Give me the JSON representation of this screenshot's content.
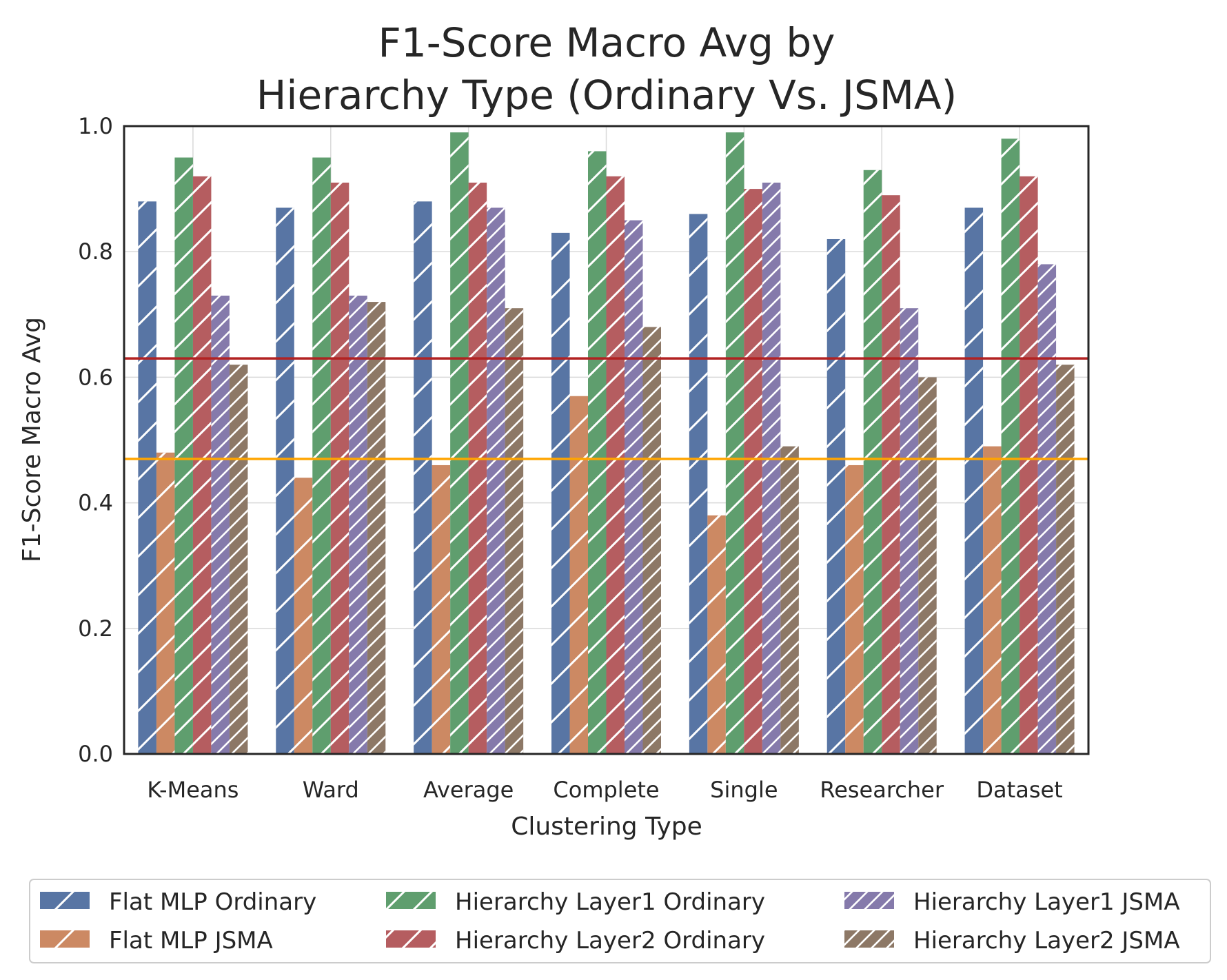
{
  "chart_data": {
    "type": "bar",
    "title_lines": [
      "F1-Score Macro Avg by",
      "Hierarchy Type (Ordinary Vs. JSMA)"
    ],
    "xlabel": "Clustering Type",
    "ylabel": "F1-Score Macro Avg",
    "ylim": [
      0,
      1.0
    ],
    "yticks": [
      "0.0",
      "0.2",
      "0.4",
      "0.6",
      "0.8",
      "1.0"
    ],
    "grid": true,
    "legend_position": "bottom",
    "categories": [
      "K-Means",
      "Ward",
      "Average",
      "Complete",
      "Single",
      "Researcher",
      "Dataset"
    ],
    "series": [
      {
        "name": "Flat MLP Ordinary",
        "color": "#5875a4",
        "hatch": "sparse",
        "values": [
          0.88,
          0.87,
          0.88,
          0.83,
          0.86,
          0.82,
          0.87
        ]
      },
      {
        "name": "Flat MLP JSMA",
        "color": "#cc8963",
        "hatch": "sparse",
        "values": [
          0.48,
          0.44,
          0.46,
          0.57,
          0.38,
          0.46,
          0.49
        ]
      },
      {
        "name": "Hierarchy Layer1 Ordinary",
        "color": "#5f9e6e",
        "hatch": "medium",
        "values": [
          0.95,
          0.95,
          0.99,
          0.96,
          0.99,
          0.93,
          0.98
        ]
      },
      {
        "name": "Hierarchy Layer2 Ordinary",
        "color": "#b55d60",
        "hatch": "medium",
        "values": [
          0.92,
          0.91,
          0.91,
          0.92,
          0.9,
          0.89,
          0.92
        ]
      },
      {
        "name": "Hierarchy Layer1 JSMA",
        "color": "#857aab",
        "hatch": "dense",
        "values": [
          0.73,
          0.73,
          0.87,
          0.85,
          0.91,
          0.71,
          0.78
        ]
      },
      {
        "name": "Hierarchy Layer2 JSMA",
        "color": "#8d7866",
        "hatch": "dense",
        "values": [
          0.62,
          0.72,
          0.71,
          0.68,
          0.49,
          0.6,
          0.62
        ]
      }
    ],
    "reference_lines": [
      {
        "value": 0.63,
        "color": "#b22222"
      },
      {
        "value": 0.47,
        "color": "#ffa500"
      }
    ]
  }
}
